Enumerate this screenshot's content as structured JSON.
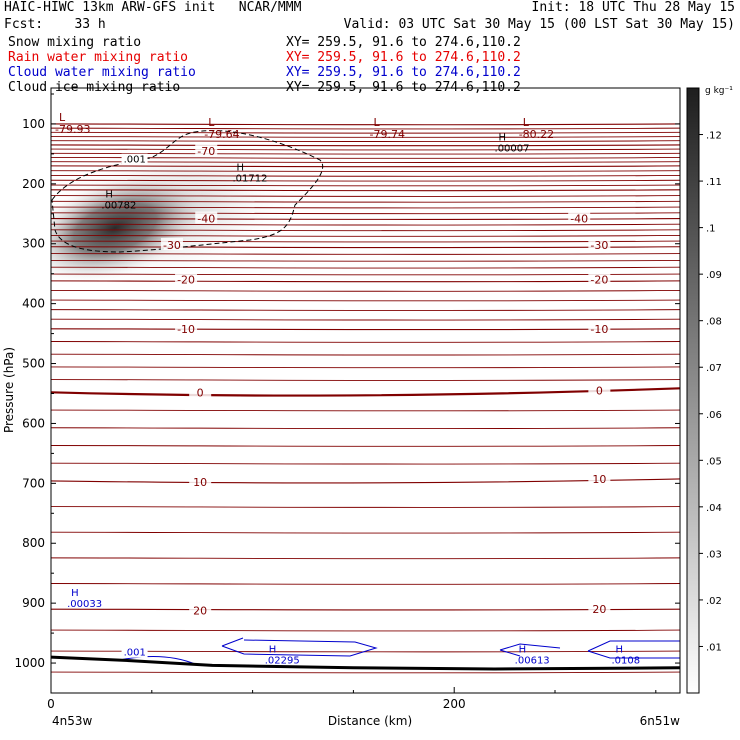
{
  "header": {
    "line1_left": "HAIC-HIWC 13km ARW-GFS init   NCAR/MMM",
    "line1_right": "Init: 18 UTC Thu 28 May 15",
    "line2_left": "Fcst:    33 h",
    "line2_right": "Valid: 03 UTC Sat 30 May 15 (00 LST Sat 30 May 15)",
    "fields": [
      {
        "name": "Snow mixing ratio",
        "xy": "XY= 259.5, 91.6 to 274.6,110.2",
        "color": "#000000"
      },
      {
        "name": "Rain water mixing ratio",
        "xy": "XY= 259.5, 91.6 to 274.6,110.2",
        "color": "#e60000"
      },
      {
        "name": "Cloud water mixing ratio",
        "xy": "XY= 259.5, 91.6 to 274.6,110.2",
        "color": "#0000cc"
      },
      {
        "name": "Cloud ice mixing ratio",
        "xy": "XY= 259.5, 91.6 to 274.6,110.2",
        "color": "#000000"
      }
    ]
  },
  "chart_data": {
    "type": "cross-section",
    "xlabel": "Distance (km)",
    "ylabel": "Pressure (hPa)",
    "xlim": [
      0,
      312
    ],
    "ylim_hPa": [
      1050,
      40
    ],
    "x_ticks": [
      0,
      200
    ],
    "y_ticks": [
      100,
      200,
      300,
      400,
      500,
      600,
      700,
      800,
      900,
      1000
    ],
    "x_endpoints": [
      "4n53w",
      "6n51w"
    ],
    "colorbar": {
      "unit": "g kg⁻¹",
      "ticks": [
        ".01",
        ".02",
        ".03",
        ".04",
        ".05",
        ".06",
        ".07",
        ".08",
        ".09",
        ".1",
        ".11",
        ".12"
      ],
      "range": [
        0,
        0.13
      ]
    },
    "temperature_color": "#800000",
    "temperature_labels": [
      {
        "value": "-70",
        "x": 77,
        "p": 145
      },
      {
        "value": "-40",
        "x": 77,
        "p": 258
      },
      {
        "value": "-40",
        "x": 262,
        "p": 258
      },
      {
        "value": "-30",
        "x": 60,
        "p": 302
      },
      {
        "value": "-30",
        "x": 272,
        "p": 302
      },
      {
        "value": "-20",
        "x": 67,
        "p": 360
      },
      {
        "value": "-20",
        "x": 272,
        "p": 360
      },
      {
        "value": "-10",
        "x": 67,
        "p": 442
      },
      {
        "value": "-10",
        "x": 272,
        "p": 442
      },
      {
        "value": "0",
        "x": 74,
        "p": 548
      },
      {
        "value": "0",
        "x": 272,
        "p": 545
      },
      {
        "value": "10",
        "x": 74,
        "p": 698
      },
      {
        "value": "10",
        "x": 272,
        "p": 693
      },
      {
        "value": "20",
        "x": 74,
        "p": 912
      },
      {
        "value": "20",
        "x": 272,
        "p": 910
      }
    ],
    "minima": [
      {
        "label": "L",
        "value": "-79.93",
        "x": 2,
        "p": 88
      },
      {
        "label": "L",
        "value": "-79.64",
        "x": 76,
        "p": 97
      },
      {
        "label": "L",
        "value": "-79.74",
        "x": 158,
        "p": 97
      },
      {
        "label": "L",
        "value": "-80.22",
        "x": 232,
        "p": 97
      }
    ],
    "ice_maxima": [
      {
        "label": "H",
        "value": ".00782",
        "x": 25,
        "p": 223
      },
      {
        "label": "H",
        "value": ".01712",
        "x": 90,
        "p": 178
      },
      {
        "label": "H",
        "value": ".00007",
        "x": 220,
        "p": 128
      }
    ],
    "cloudwater_maxima": [
      {
        "label": "H",
        "value": ".00033",
        "x": 8,
        "p": 888
      },
      {
        "label": "H",
        "value": ".02295",
        "x": 106,
        "p": 982
      },
      {
        "label": "H",
        "value": ".00613",
        "x": 230,
        "p": 982
      },
      {
        "label": "H",
        "value": ".0108",
        "x": 278,
        "p": 982
      }
    ],
    "contour_labels": [
      {
        "value": ".001",
        "series": "ice",
        "x": 36,
        "p": 163
      },
      {
        "value": ".001",
        "series": "cloudwater",
        "x": 36,
        "p": 986
      }
    ],
    "terrain_hPa": [
      [
        0,
        990
      ],
      [
        40,
        996
      ],
      [
        80,
        1004
      ],
      [
        150,
        1008
      ],
      [
        220,
        1010
      ],
      [
        312,
        1008
      ]
    ],
    "snow_max": {
      "value": 0.11,
      "x": 28,
      "p": 265
    }
  }
}
